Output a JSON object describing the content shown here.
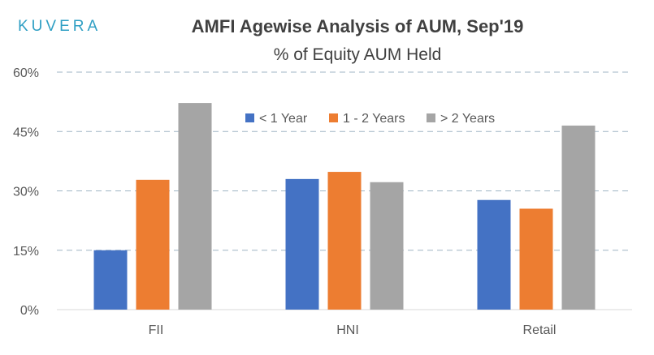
{
  "brand": {
    "logo_text": "KUVERA"
  },
  "chart_data": {
    "type": "bar",
    "title": "AMFI Agewise Analysis of AUM, Sep'19",
    "subtitle": "% of Equity AUM Held",
    "categories": [
      "FII",
      "HNI",
      "Retail"
    ],
    "series": [
      {
        "name": "< 1 Year",
        "color": "#4472c4",
        "values": [
          15,
          33,
          27.7
        ]
      },
      {
        "name": "1 - 2 Years",
        "color": "#ed7d31",
        "values": [
          32.8,
          34.8,
          25.5
        ]
      },
      {
        "name": "> 2 Years",
        "color": "#a5a5a5",
        "values": [
          52.2,
          32.2,
          46.5
        ]
      }
    ],
    "ylim": [
      0,
      60
    ],
    "yticks": [
      0,
      15,
      30,
      45,
      60
    ],
    "ytick_labels": [
      "0%",
      "15%",
      "30%",
      "45%",
      "60%"
    ],
    "grid": true,
    "legend_position": "top-center"
  }
}
